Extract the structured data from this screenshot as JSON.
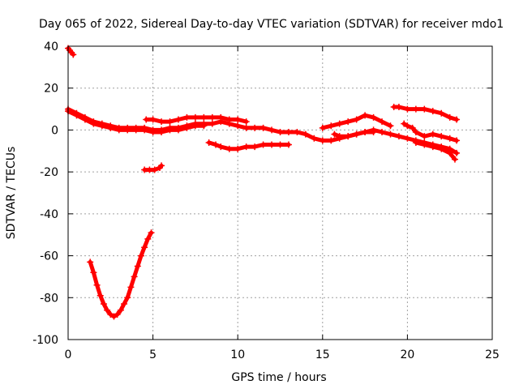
{
  "chart_data": {
    "type": "scatter",
    "title": "Day 065 of 2022, Sidereal Day-to-day VTEC variation (SDTVAR) for receiver mdo1",
    "xlabel": "GPS time / hours",
    "ylabel": "SDTVAR / TECUs",
    "xlim": [
      0,
      25
    ],
    "ylim": [
      -100,
      40
    ],
    "xticks": [
      0,
      5,
      10,
      15,
      20,
      25
    ],
    "yticks": [
      -100,
      -80,
      -60,
      -40,
      -20,
      0,
      20,
      40
    ],
    "grid": true,
    "marker": "plus",
    "colors": {
      "series": "#ff0000",
      "grid": "#a0a0a0",
      "axis": "#000000"
    },
    "series": [
      {
        "name": "early-spike",
        "points": [
          [
            0.0,
            39
          ],
          [
            0.1,
            38
          ],
          [
            0.2,
            37
          ],
          [
            0.3,
            36
          ]
        ]
      },
      {
        "name": "main-trend",
        "points": [
          [
            0.0,
            10
          ],
          [
            0.5,
            8
          ],
          [
            1.0,
            6
          ],
          [
            1.5,
            4
          ],
          [
            2.0,
            3
          ],
          [
            2.5,
            2
          ],
          [
            3.0,
            1
          ],
          [
            3.5,
            1
          ],
          [
            4.0,
            1
          ],
          [
            4.5,
            1
          ],
          [
            5.0,
            0
          ],
          [
            5.5,
            0
          ],
          [
            6.0,
            1
          ],
          [
            6.5,
            1
          ],
          [
            7.0,
            2
          ],
          [
            7.5,
            3
          ],
          [
            8.0,
            3
          ],
          [
            8.5,
            3
          ],
          [
            9.0,
            4
          ],
          [
            9.5,
            3
          ],
          [
            10.0,
            2
          ],
          [
            10.5,
            1
          ],
          [
            11.0,
            1
          ],
          [
            11.5,
            1
          ],
          [
            12.0,
            0
          ],
          [
            12.5,
            -1
          ],
          [
            13.0,
            -1
          ],
          [
            13.5,
            -1
          ],
          [
            14.0,
            -2
          ],
          [
            14.5,
            -4
          ],
          [
            15.0,
            -5
          ],
          [
            15.5,
            -5
          ],
          [
            16.0,
            -4
          ],
          [
            16.5,
            -3
          ],
          [
            17.0,
            -2
          ],
          [
            17.5,
            -1
          ],
          [
            18.0,
            0
          ],
          [
            18.5,
            -1
          ],
          [
            19.0,
            -2
          ],
          [
            19.5,
            -3
          ],
          [
            20.0,
            -4
          ],
          [
            20.5,
            -5
          ],
          [
            21.0,
            -6
          ],
          [
            21.5,
            -7
          ],
          [
            22.0,
            -8
          ],
          [
            22.5,
            -9
          ],
          [
            22.9,
            -11
          ]
        ]
      },
      {
        "name": "main-trend-lower",
        "points": [
          [
            0.0,
            9
          ],
          [
            0.5,
            7
          ],
          [
            1.0,
            5
          ],
          [
            1.5,
            3
          ],
          [
            2.0,
            2
          ],
          [
            2.5,
            1
          ],
          [
            3.0,
            0
          ],
          [
            3.5,
            0
          ],
          [
            4.0,
            0
          ],
          [
            4.5,
            0
          ],
          [
            5.0,
            -1
          ],
          [
            5.5,
            -1
          ],
          [
            6.0,
            0
          ],
          [
            6.5,
            0
          ],
          [
            7.0,
            1
          ],
          [
            7.5,
            2
          ],
          [
            8.0,
            2
          ]
        ]
      },
      {
        "name": "upper-arc-1",
        "points": [
          [
            4.6,
            5
          ],
          [
            5.0,
            5
          ],
          [
            5.5,
            4
          ],
          [
            6.0,
            4
          ],
          [
            6.5,
            5
          ],
          [
            7.0,
            6
          ],
          [
            7.5,
            6
          ],
          [
            8.0,
            6
          ],
          [
            8.5,
            6
          ],
          [
            9.0,
            6
          ],
          [
            9.5,
            5
          ],
          [
            10.0,
            5
          ],
          [
            10.5,
            4
          ]
        ]
      },
      {
        "name": "upper-arc-2",
        "points": [
          [
            15.0,
            1
          ],
          [
            15.5,
            2
          ],
          [
            16.0,
            3
          ],
          [
            16.5,
            4
          ],
          [
            17.0,
            5
          ],
          [
            17.5,
            7
          ],
          [
            18.0,
            6
          ],
          [
            18.5,
            4
          ],
          [
            19.0,
            2
          ]
        ]
      },
      {
        "name": "late-high",
        "points": [
          [
            19.2,
            11
          ],
          [
            19.5,
            11
          ],
          [
            20.0,
            10
          ],
          [
            20.5,
            10
          ],
          [
            21.0,
            10
          ],
          [
            21.5,
            9
          ],
          [
            22.0,
            8
          ],
          [
            22.5,
            6
          ],
          [
            22.9,
            5
          ]
        ]
      },
      {
        "name": "late-mid",
        "points": [
          [
            19.8,
            3
          ],
          [
            20.0,
            2
          ],
          [
            20.3,
            1
          ],
          [
            20.5,
            -1
          ],
          [
            21.0,
            -3
          ],
          [
            21.5,
            -2
          ],
          [
            22.0,
            -3
          ],
          [
            22.5,
            -4
          ],
          [
            22.9,
            -5
          ]
        ]
      },
      {
        "name": "dip-band",
        "points": [
          [
            8.3,
            -6
          ],
          [
            8.7,
            -7
          ],
          [
            9.0,
            -8
          ],
          [
            9.5,
            -9
          ],
          [
            10.0,
            -9
          ],
          [
            10.5,
            -8
          ],
          [
            11.0,
            -8
          ],
          [
            11.5,
            -7
          ],
          [
            12.0,
            -7
          ],
          [
            12.5,
            -7
          ],
          [
            13.0,
            -7
          ]
        ]
      },
      {
        "name": "mid-blip",
        "points": [
          [
            15.7,
            -2
          ],
          [
            16.0,
            -3
          ],
          [
            16.5,
            -3
          ],
          [
            17.0,
            -2
          ],
          [
            17.5,
            -1
          ],
          [
            18.0,
            -1
          ]
        ]
      },
      {
        "name": "late-low",
        "points": [
          [
            20.5,
            -6
          ],
          [
            21.0,
            -7
          ],
          [
            21.5,
            -8
          ],
          [
            22.0,
            -9
          ],
          [
            22.5,
            -11
          ],
          [
            22.8,
            -14
          ]
        ]
      },
      {
        "name": "short-segment",
        "points": [
          [
            4.5,
            -19
          ],
          [
            4.8,
            -19
          ],
          [
            5.1,
            -19
          ],
          [
            5.4,
            -18
          ],
          [
            5.5,
            -17
          ]
        ]
      },
      {
        "name": "deep-dip",
        "points": [
          [
            1.3,
            -63
          ],
          [
            1.5,
            -68
          ],
          [
            1.7,
            -74
          ],
          [
            1.9,
            -79
          ],
          [
            2.1,
            -83
          ],
          [
            2.3,
            -86
          ],
          [
            2.5,
            -88
          ],
          [
            2.7,
            -89
          ],
          [
            2.9,
            -88
          ],
          [
            3.1,
            -86
          ],
          [
            3.3,
            -83
          ],
          [
            3.5,
            -80
          ],
          [
            3.7,
            -75
          ],
          [
            3.9,
            -70
          ],
          [
            4.1,
            -65
          ],
          [
            4.3,
            -60
          ],
          [
            4.5,
            -56
          ],
          [
            4.7,
            -52
          ],
          [
            4.9,
            -49
          ]
        ]
      }
    ]
  }
}
